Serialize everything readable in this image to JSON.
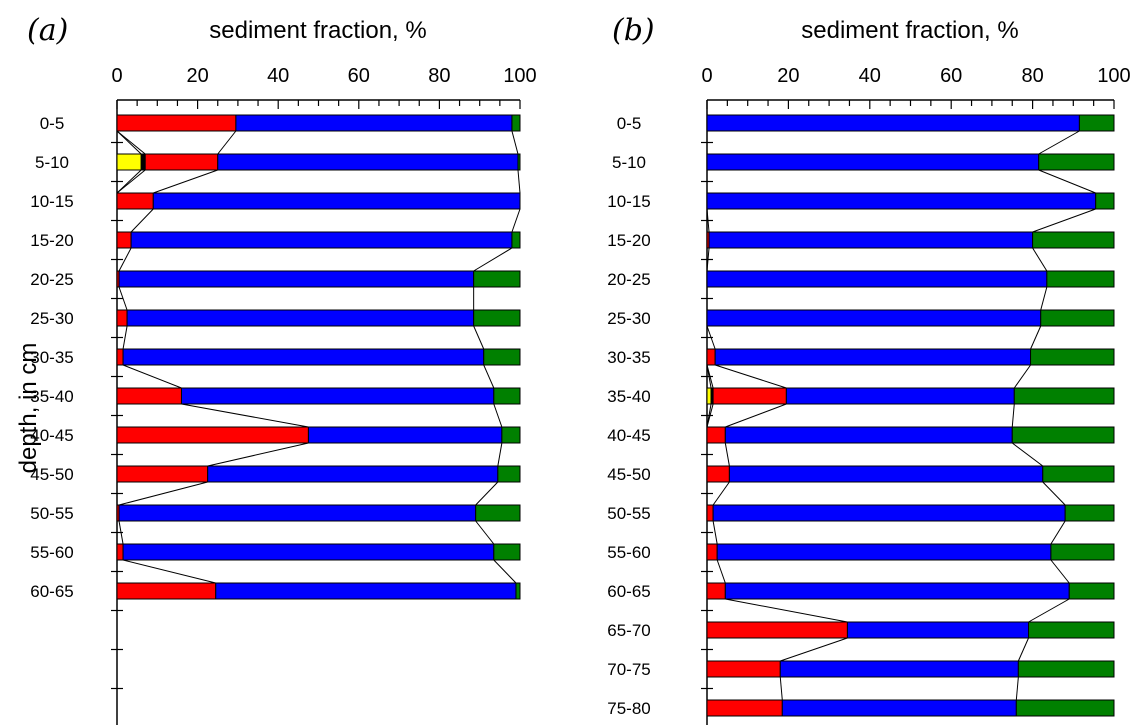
{
  "chart_data": [
    {
      "type": "bar",
      "stacked": true,
      "orientation": "horizontal",
      "panel_label": "(a)",
      "xlabel": "sediment fraction, %",
      "ylabel": "depth, in cm",
      "xlim": [
        0,
        100
      ],
      "x_ticks": [
        "0",
        "20",
        "40",
        "60",
        "80",
        "100"
      ],
      "categories": [
        "0-5",
        "5-10",
        "10-15",
        "15-20",
        "20-25",
        "25-30",
        "30-35",
        "35-40",
        "40-45",
        "45-50",
        "50-55",
        "55-60",
        "60-65"
      ],
      "y_tick_slots": 16,
      "series": [
        {
          "color": "#ffff00",
          "values": [
            0,
            6,
            0,
            0,
            0,
            0,
            0,
            0,
            0,
            0,
            0,
            0,
            0
          ]
        },
        {
          "color": "#000000",
          "values": [
            0,
            1,
            0,
            0,
            0,
            0,
            0,
            0,
            0,
            0,
            0,
            0,
            0
          ]
        },
        {
          "color": "#ff0000",
          "values": [
            29.5,
            18,
            9,
            3.5,
            0.5,
            2.5,
            1.5,
            16,
            47.5,
            22.5,
            0.5,
            1.5,
            24.5
          ]
        },
        {
          "color": "#0000ff",
          "values": [
            68.5,
            74.5,
            91,
            94.5,
            88,
            86,
            89.5,
            77.5,
            48,
            72,
            88.5,
            92,
            74.5
          ]
        },
        {
          "color": "#008000",
          "values": [
            2,
            0.5,
            0,
            2,
            11.5,
            11.5,
            9,
            6.5,
            4.5,
            5.5,
            11,
            6.5,
            1
          ]
        }
      ]
    },
    {
      "type": "bar",
      "stacked": true,
      "orientation": "horizontal",
      "panel_label": "(b)",
      "xlabel": "sediment fraction, %",
      "xlim": [
        0,
        100
      ],
      "x_ticks": [
        "0",
        "20",
        "40",
        "60",
        "80",
        "100"
      ],
      "categories": [
        "0-5",
        "5-10",
        "10-15",
        "15-20",
        "20-25",
        "25-30",
        "30-35",
        "35-40",
        "40-45",
        "45-50",
        "50-55",
        "55-60",
        "60-65",
        "65-70",
        "70-75",
        "75-80"
      ],
      "y_tick_slots": 16,
      "series": [
        {
          "color": "#ffff00",
          "values": [
            0,
            0,
            0,
            0,
            0,
            0,
            0,
            1,
            0,
            0,
            0,
            0,
            0,
            0,
            0,
            0
          ]
        },
        {
          "color": "#000000",
          "values": [
            0,
            0,
            0,
            0,
            0,
            0,
            0,
            0.5,
            0,
            0,
            0,
            0,
            0,
            0,
            0,
            0
          ]
        },
        {
          "color": "#ff0000",
          "values": [
            0,
            0,
            0,
            0.5,
            0,
            0,
            2,
            18,
            4.5,
            5.5,
            1.5,
            2.5,
            4.5,
            34.5,
            18,
            18.5
          ]
        },
        {
          "color": "#0000ff",
          "values": [
            91.5,
            81.5,
            95.5,
            79.5,
            83.5,
            82,
            77.5,
            56,
            70.5,
            77,
            86.5,
            82,
            84.5,
            44.5,
            58.5,
            57.5
          ]
        },
        {
          "color": "#008000",
          "values": [
            8.5,
            18.5,
            4.5,
            20,
            16.5,
            18,
            20.5,
            24.5,
            25,
            17.5,
            12,
            15.5,
            11,
            21,
            23.5,
            24
          ]
        }
      ]
    }
  ]
}
